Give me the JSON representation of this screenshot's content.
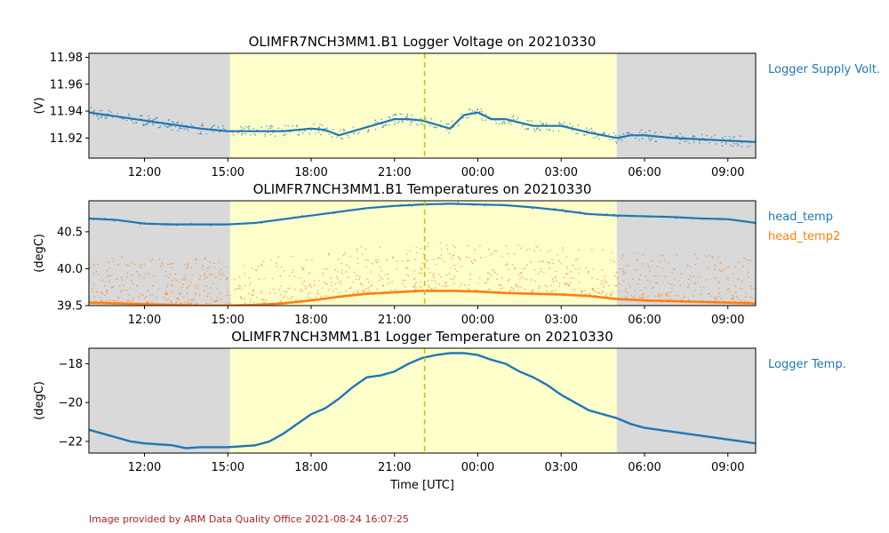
{
  "colors": {
    "night": "#d9d9d9",
    "day": "#ffffcc",
    "marker": "#c8c800",
    "series1": "#1f77b4",
    "series2": "#ff7f0e",
    "credit": "#b22222"
  },
  "xaxis": {
    "label": "Time [UTC]",
    "range": [
      "2021-03-30 10:00",
      "2021-03-31 10:00"
    ],
    "ticks": [
      "12:00",
      "15:00",
      "18:00",
      "21:00",
      "00:00",
      "03:00",
      "06:00",
      "09:00"
    ],
    "night_end": "15:05",
    "night_start": "05:00",
    "marker_time": "22:05"
  },
  "credit": "Image provided by ARM Data Quality Office 2021-08-24 16:07:25",
  "chart_data": [
    {
      "type": "scatter",
      "title": "OLIMFR7NCH3MM1.B1 Logger Voltage on 20210330",
      "ylabel": "(V)",
      "ylim": [
        11.905,
        11.983
      ],
      "yticks": [
        "11.92",
        "11.94",
        "11.96",
        "11.98"
      ],
      "series": [
        {
          "name": "Logger Supply Volt.",
          "x_hours": [
            0,
            2,
            4,
            5,
            6,
            7,
            8,
            8.5,
            9,
            10,
            11,
            11.5,
            12,
            12.5,
            13,
            13.5,
            14,
            14.5,
            15,
            16,
            17,
            18,
            18.5,
            19,
            19.5,
            20,
            21,
            22,
            23,
            24
          ],
          "values": [
            11.939,
            11.933,
            11.927,
            11.925,
            11.925,
            11.925,
            11.927,
            11.926,
            11.922,
            11.928,
            11.934,
            11.934,
            11.933,
            11.93,
            11.927,
            11.937,
            11.939,
            11.934,
            11.934,
            11.929,
            11.929,
            11.924,
            11.922,
            11.92,
            11.922,
            11.922,
            11.92,
            11.919,
            11.918,
            11.917
          ]
        }
      ]
    },
    {
      "type": "scatter",
      "title": "OLIMFR7NCH3MM1.B1 Temperatures on 20210330",
      "ylabel": "(degC)",
      "ylim": [
        39.5,
        40.92
      ],
      "yticks": [
        "39.5",
        "40.0",
        "40.5"
      ],
      "series": [
        {
          "name": "head_temp",
          "x_hours": [
            0,
            1,
            2,
            3,
            4,
            5,
            6,
            7,
            8,
            9,
            10,
            11,
            12,
            13,
            14,
            15,
            16,
            17,
            18,
            19,
            20,
            21,
            22,
            23,
            24
          ],
          "values": [
            40.68,
            40.66,
            40.61,
            40.6,
            40.6,
            40.6,
            40.62,
            40.67,
            40.72,
            40.77,
            40.82,
            40.85,
            40.87,
            40.88,
            40.87,
            40.86,
            40.83,
            40.79,
            40.74,
            40.72,
            40.71,
            40.7,
            40.68,
            40.67,
            40.62
          ]
        },
        {
          "name": "head_temp2",
          "x_hours": [
            0,
            2,
            4,
            5,
            6,
            7,
            8,
            9,
            10,
            11,
            12,
            13,
            14,
            15,
            16,
            17,
            18,
            19,
            20,
            21,
            22,
            23,
            24
          ],
          "values": [
            39.54,
            39.52,
            39.5,
            39.5,
            39.51,
            39.53,
            39.57,
            39.62,
            39.66,
            39.68,
            39.7,
            39.7,
            39.69,
            39.67,
            39.66,
            39.65,
            39.63,
            39.59,
            39.57,
            39.56,
            39.55,
            39.54,
            39.53
          ]
        }
      ]
    },
    {
      "type": "line",
      "title": "OLIMFR7NCH3MM1.B1 Logger Temperature on 20210330",
      "ylabel": "(degC)",
      "ylim": [
        -22.6,
        -17.2
      ],
      "yticks": [
        "−18",
        "−20",
        "−22"
      ],
      "series": [
        {
          "name": "Logger Temp.",
          "x_hours": [
            0,
            0.5,
            1,
            1.5,
            2,
            3,
            3.5,
            4,
            5,
            5.5,
            6,
            6.5,
            7,
            7.5,
            8,
            8.5,
            9,
            9.5,
            10,
            10.5,
            11,
            11.5,
            12,
            12.5,
            13,
            13.5,
            14,
            14.5,
            15,
            15.5,
            16,
            16.5,
            17,
            17.5,
            18,
            18.5,
            19,
            19.5,
            20,
            20.5,
            21,
            22,
            23,
            24
          ],
          "values": [
            -21.4,
            -21.6,
            -21.8,
            -22.0,
            -22.1,
            -22.2,
            -22.35,
            -22.3,
            -22.3,
            -22.25,
            -22.2,
            -22.0,
            -21.6,
            -21.1,
            -20.6,
            -20.3,
            -19.8,
            -19.2,
            -18.7,
            -18.6,
            -18.4,
            -18.0,
            -17.7,
            -17.55,
            -17.45,
            -17.45,
            -17.55,
            -17.8,
            -18.0,
            -18.4,
            -18.7,
            -19.1,
            -19.6,
            -20.0,
            -20.4,
            -20.6,
            -20.8,
            -21.1,
            -21.3,
            -21.4,
            -21.5,
            -21.7,
            -21.9,
            -22.1
          ]
        }
      ]
    }
  ]
}
